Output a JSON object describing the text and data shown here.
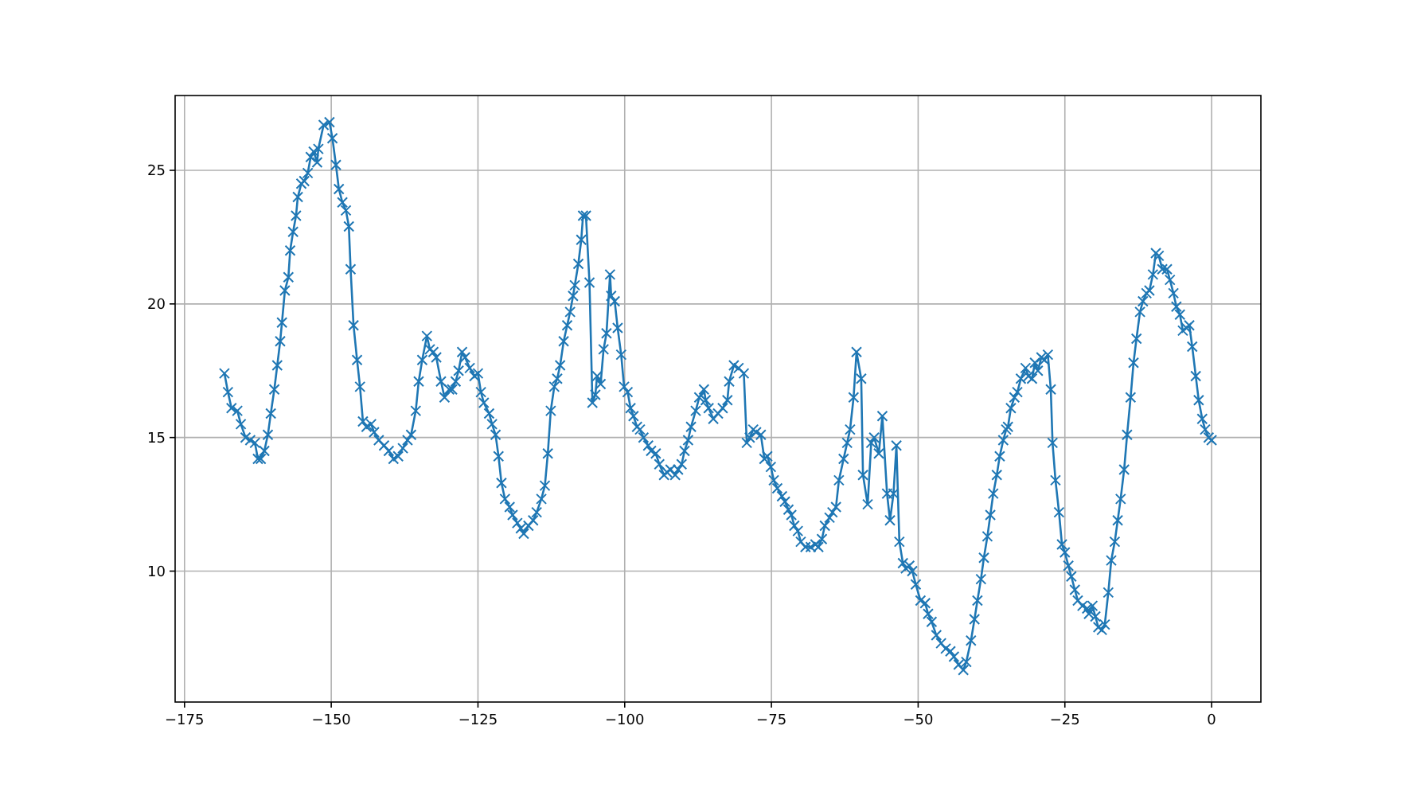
{
  "chart_data": {
    "type": "line",
    "xlim": [
      -176.6,
      8.4
    ],
    "ylim": [
      5.1,
      27.8
    ],
    "xticks": [
      {
        "value": -175,
        "label": "−175"
      },
      {
        "value": -150,
        "label": "−150"
      },
      {
        "value": -125,
        "label": "−125"
      },
      {
        "value": -100,
        "label": "−100"
      },
      {
        "value": -75,
        "label": "−75"
      },
      {
        "value": -50,
        "label": "−50"
      },
      {
        "value": -25,
        "label": "−25"
      },
      0
    ],
    "yticks": [
      10,
      15,
      20,
      25
    ],
    "grid": true,
    "marker": "cross",
    "line_style": "solid",
    "series": [
      {
        "color": "#1f77b4",
        "x": [
          -168.2,
          -167.6,
          -167,
          -166,
          -165.4,
          -164.6,
          -163.8,
          -163,
          -162.5,
          -162,
          -161.4,
          -160.8,
          -160.3,
          -159.7,
          -159.2,
          -158.7,
          -158.4,
          -157.9,
          -157.3,
          -157,
          -156.5,
          -156,
          -155.7,
          -155.1,
          -154.6,
          -154,
          -153.5,
          -153,
          -152.4,
          -152.2,
          -151.3,
          -150.3,
          -149.8,
          -149.2,
          -148.7,
          -148.1,
          -147.5,
          -147,
          -146.7,
          -146.2,
          -145.6,
          -145.1,
          -144.6,
          -144,
          -143.2,
          -142.7,
          -141.9,
          -141,
          -140.2,
          -139.4,
          -138.6,
          -137.8,
          -137,
          -136.4,
          -135.6,
          -135.1,
          -134.5,
          -133.7,
          -133.2,
          -132.6,
          -132.1,
          -131.3,
          -130.7,
          -129.9,
          -129.4,
          -128.8,
          -128.3,
          -127.7,
          -127.2,
          -126.4,
          -125.6,
          -125,
          -124.5,
          -124,
          -123.1,
          -122.6,
          -122,
          -121.5,
          -121,
          -120.4,
          -119.6,
          -119.1,
          -118.3,
          -117.7,
          -117.2,
          -116.4,
          -115.6,
          -115,
          -114.2,
          -113.6,
          -113.1,
          -112.6,
          -112,
          -111.5,
          -111,
          -110.4,
          -109.8,
          -109.3,
          -108.8,
          -108.5,
          -107.9,
          -107.4,
          -107.1,
          -106.6,
          -106,
          -105.5,
          -105,
          -104.7,
          -104.1,
          -103.6,
          -103.1,
          -102.5,
          -102.3,
          -101.7,
          -101.2,
          -100.6,
          -100.1,
          -99.5,
          -99,
          -98.5,
          -97.9,
          -97.4,
          -96.8,
          -96,
          -95.5,
          -94.7,
          -94.1,
          -93.3,
          -92.8,
          -92.2,
          -91.4,
          -90.9,
          -90.3,
          -89.8,
          -89.2,
          -88.7,
          -87.9,
          -87.3,
          -86.5,
          -86.2,
          -85.7,
          -84.9,
          -84.1,
          -83.3,
          -82.5,
          -82.2,
          -81.4,
          -80.6,
          -79.7,
          -79.2,
          -78.7,
          -78.1,
          -77.6,
          -76.8,
          -76.2,
          -75.7,
          -75.1,
          -74.6,
          -74,
          -73.2,
          -72.7,
          -72.1,
          -71.6,
          -71.1,
          -70.5,
          -70,
          -69.2,
          -68.3,
          -67.5,
          -67,
          -66.4,
          -65.9,
          -65.1,
          -64.6,
          -64,
          -63.5,
          -62.7,
          -62.1,
          -61.6,
          -61,
          -60.5,
          -59.7,
          -59.4,
          -58.6,
          -58,
          -57.5,
          -56.7,
          -56.1,
          -55.3,
          -54.8,
          -54.2,
          -53.7,
          -53.2,
          -52.6,
          -52.1,
          -51.5,
          -51,
          -50.4,
          -49.6,
          -48.8,
          -48.3,
          -47.7,
          -46.9,
          -46.1,
          -45.3,
          -44.5,
          -43.9,
          -43.1,
          -42.3,
          -41.8,
          -41,
          -40.4,
          -39.9,
          -39.3,
          -38.8,
          -38.2,
          -37.7,
          -37.2,
          -36.6,
          -36.1,
          -35.5,
          -35,
          -34.7,
          -34.2,
          -33.6,
          -33.1,
          -32.5,
          -31.7,
          -31.2,
          -30.6,
          -30.1,
          -29.6,
          -29,
          -28.5,
          -27.9,
          -27.4,
          -27.1,
          -26.6,
          -26,
          -25.5,
          -25,
          -24.4,
          -23.9,
          -23.3,
          -22.8,
          -22,
          -21.2,
          -20.9,
          -20.3,
          -19.8,
          -19.3,
          -18.7,
          -18.2,
          -17.6,
          -17.1,
          -16.5,
          -16,
          -15.5,
          -14.9,
          -14.4,
          -13.8,
          -13.3,
          -12.8,
          -12.2,
          -11.7,
          -11.1,
          -10.6,
          -10,
          -9.5,
          -9,
          -8.4,
          -7.6,
          -7.1,
          -6.5,
          -6,
          -5.4,
          -4.9,
          -4.3,
          -3.8,
          -3.3,
          -2.7,
          -2.2,
          -1.6,
          -1.1,
          -0.5,
          0
        ],
        "values": [
          17.4,
          16.7,
          16.1,
          16,
          15.5,
          15,
          14.9,
          14.8,
          14.2,
          14.2,
          14.5,
          15.1,
          15.9,
          16.8,
          17.7,
          18.6,
          19.3,
          20.5,
          21,
          22,
          22.7,
          23.3,
          24,
          24.5,
          24.6,
          24.9,
          25.5,
          25.7,
          25.3,
          25.8,
          26.7,
          26.8,
          26.2,
          25.2,
          24.3,
          23.8,
          23.5,
          22.9,
          21.3,
          19.2,
          17.9,
          16.9,
          15.6,
          15.4,
          15.5,
          15.2,
          14.9,
          14.7,
          14.5,
          14.2,
          14.3,
          14.6,
          14.9,
          15.1,
          16,
          17.1,
          17.9,
          18.8,
          18.3,
          18.2,
          18,
          17.1,
          16.5,
          16.8,
          16.8,
          17.1,
          17.5,
          18.2,
          18,
          17.6,
          17.3,
          17.4,
          16.7,
          16.3,
          15.9,
          15.5,
          15.1,
          14.3,
          13.3,
          12.7,
          12.4,
          12.1,
          11.8,
          11.6,
          11.4,
          11.7,
          11.9,
          12.2,
          12.7,
          13.2,
          14.4,
          16,
          16.9,
          17.2,
          17.7,
          18.6,
          19.2,
          19.7,
          20.3,
          20.7,
          21.5,
          22.4,
          23.3,
          23.3,
          20.8,
          16.3,
          16.6,
          17.3,
          17,
          18.3,
          18.9,
          21.1,
          20.3,
          20.1,
          19.1,
          18.1,
          16.9,
          16.7,
          16.1,
          15.8,
          15.4,
          15.3,
          15,
          14.7,
          14.5,
          14.4,
          14,
          13.6,
          13.7,
          13.8,
          13.6,
          13.8,
          14,
          14.5,
          14.9,
          15.4,
          16,
          16.5,
          16.8,
          16.4,
          16.1,
          15.7,
          15.9,
          16.1,
          16.4,
          17.1,
          17.7,
          17.6,
          17.4,
          14.8,
          15,
          15.3,
          15.2,
          15.1,
          14.2,
          14.3,
          13.9,
          13.4,
          13.1,
          12.8,
          12.6,
          12.3,
          12.1,
          11.7,
          11.5,
          11.1,
          10.9,
          10.9,
          11,
          10.9,
          11.2,
          11.7,
          12,
          12.2,
          12.4,
          13.4,
          14.2,
          14.8,
          15.3,
          16.5,
          18.2,
          17.2,
          13.6,
          12.5,
          14.8,
          15,
          14.4,
          15.8,
          12.9,
          11.9,
          12.9,
          14.7,
          11.1,
          10.3,
          10.1,
          10.2,
          10,
          9.5,
          8.9,
          8.8,
          8.4,
          8.1,
          7.6,
          7.3,
          7.1,
          7,
          6.8,
          6.5,
          6.3,
          6.6,
          7.4,
          8.2,
          8.9,
          9.7,
          10.5,
          11.3,
          12.1,
          12.9,
          13.6,
          14.3,
          14.9,
          15.3,
          15.4,
          16.1,
          16.5,
          16.7,
          17.2,
          17.6,
          17.3,
          17.2,
          17.8,
          17.5,
          18,
          17.9,
          18.1,
          16.8,
          14.8,
          13.4,
          12.2,
          11,
          10.7,
          10.2,
          9.8,
          9.3,
          8.9,
          8.7,
          8.6,
          8.4,
          8.7,
          8.3,
          7.9,
          7.8,
          8,
          9.2,
          10.4,
          11.1,
          11.9,
          12.7,
          13.8,
          15.1,
          16.5,
          17.8,
          18.7,
          19.7,
          20.1,
          20.4,
          20.5,
          21.1,
          21.9,
          21.8,
          21.3,
          21.3,
          20.9,
          20.4,
          19.9,
          19.6,
          19,
          19.1,
          19.2,
          18.4,
          17.3,
          16.4,
          15.7,
          15.3,
          15,
          14.9
        ]
      }
    ]
  }
}
